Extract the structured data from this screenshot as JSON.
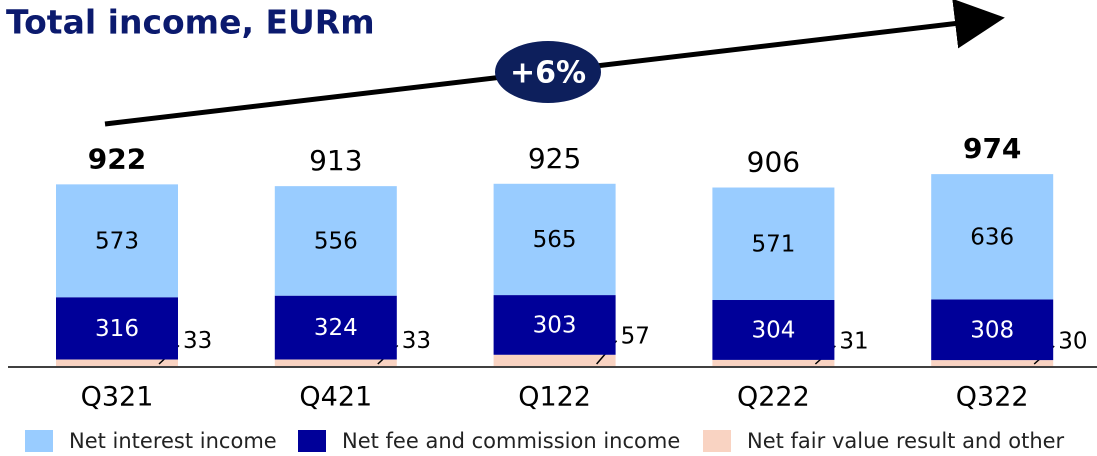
{
  "chart_data": {
    "type": "stacked_bar",
    "title": "Total income, EURm",
    "annotation": "+6%",
    "categories": [
      "Q321",
      "Q421",
      "Q122",
      "Q222",
      "Q322"
    ],
    "series": [
      {
        "name": "Net fair value result and other",
        "color": "#f9d3c2",
        "values": [
          33,
          33,
          57,
          31,
          30
        ]
      },
      {
        "name": "Net fee and commission income",
        "color": "#000099",
        "values": [
          316,
          324,
          303,
          304,
          308
        ]
      },
      {
        "name": "Net interest income",
        "color": "#99ccff",
        "values": [
          573,
          556,
          565,
          571,
          636
        ]
      }
    ],
    "totals": [
      922,
      913,
      925,
      906,
      974
    ],
    "ylim": [
      0,
      1000
    ]
  }
}
